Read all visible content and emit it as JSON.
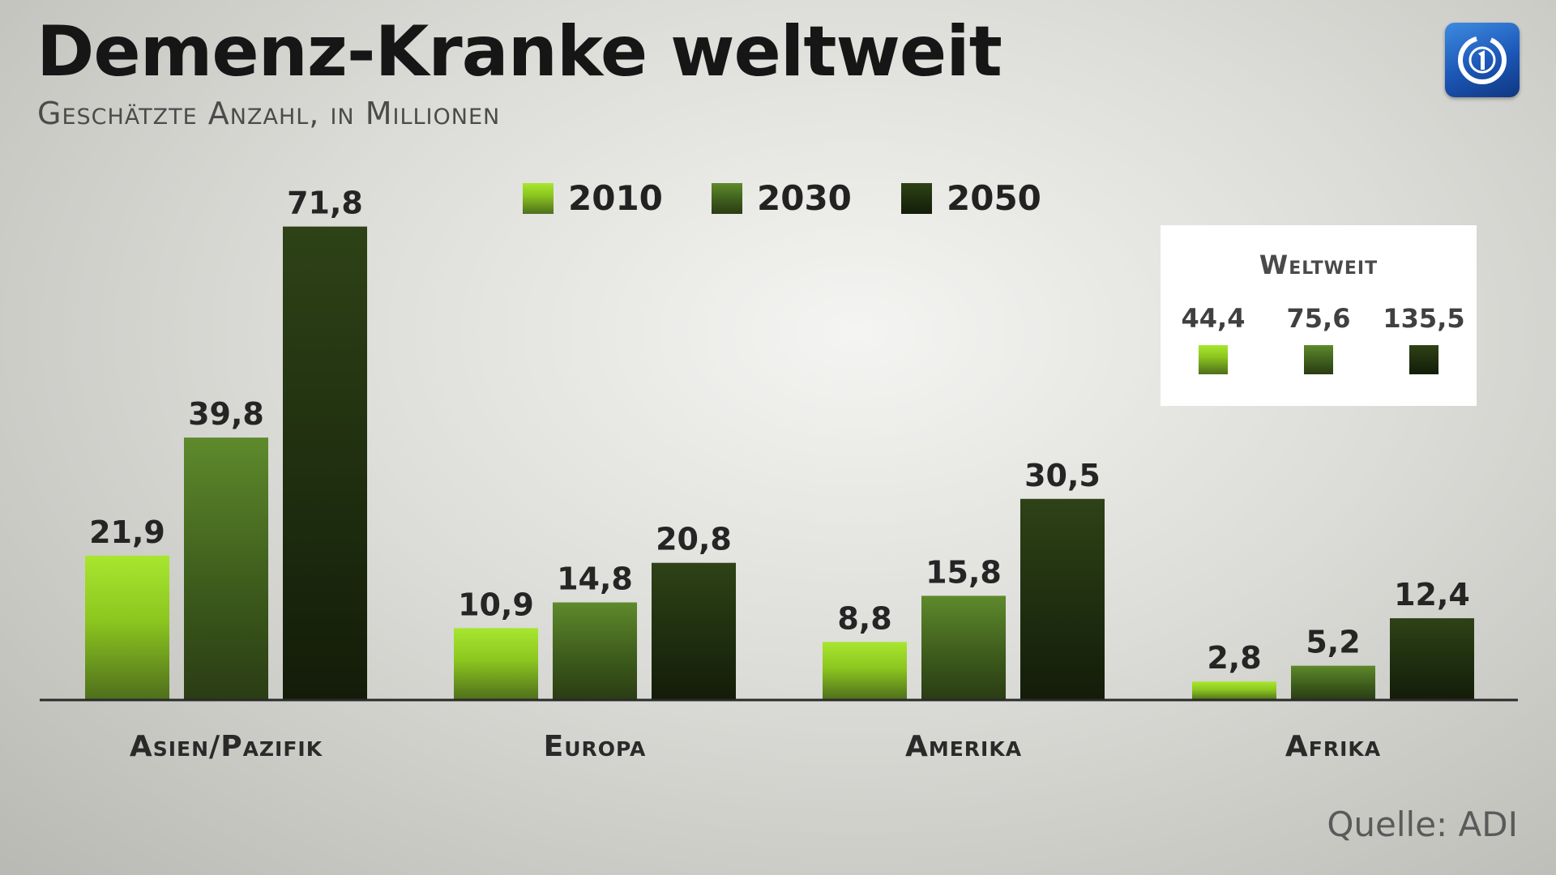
{
  "header": {
    "title": "Demenz-Kranke weltweit",
    "subtitle": "Geschätzte Anzahl, in Millionen",
    "logo_icon": "ard-logo-icon"
  },
  "legend": {
    "items": [
      {
        "label": "2010",
        "color": "#94d11f"
      },
      {
        "label": "2030",
        "color": "#4c7224"
      },
      {
        "label": "2050",
        "color": "#213212"
      }
    ]
  },
  "world_box": {
    "title": "Weltweit",
    "values": [
      "44,4",
      "75,6",
      "135,5"
    ]
  },
  "source": "Quelle: ADI",
  "chart_data": {
    "type": "bar",
    "title": "Demenz-Kranke weltweit",
    "subtitle": "Geschätzte Anzahl, in Millionen",
    "categories": [
      "Asien/Pazifik",
      "Europa",
      "Amerika",
      "Afrika"
    ],
    "series": [
      {
        "name": "2010",
        "values": [
          21.9,
          10.9,
          8.8,
          2.8
        ],
        "labels": [
          "21,9",
          "10,9",
          "8,8",
          "2,8"
        ]
      },
      {
        "name": "2030",
        "values": [
          39.8,
          14.8,
          15.8,
          5.2
        ],
        "labels": [
          "39,8",
          "14,8",
          "15,8",
          "5,2"
        ]
      },
      {
        "name": "2050",
        "values": [
          71.8,
          20.8,
          30.5,
          12.4
        ],
        "labels": [
          "71,8",
          "20,8",
          "30,5",
          "12,4"
        ]
      }
    ],
    "ylim": [
      0,
      72
    ],
    "grid": false,
    "legend_position": "top-center"
  }
}
